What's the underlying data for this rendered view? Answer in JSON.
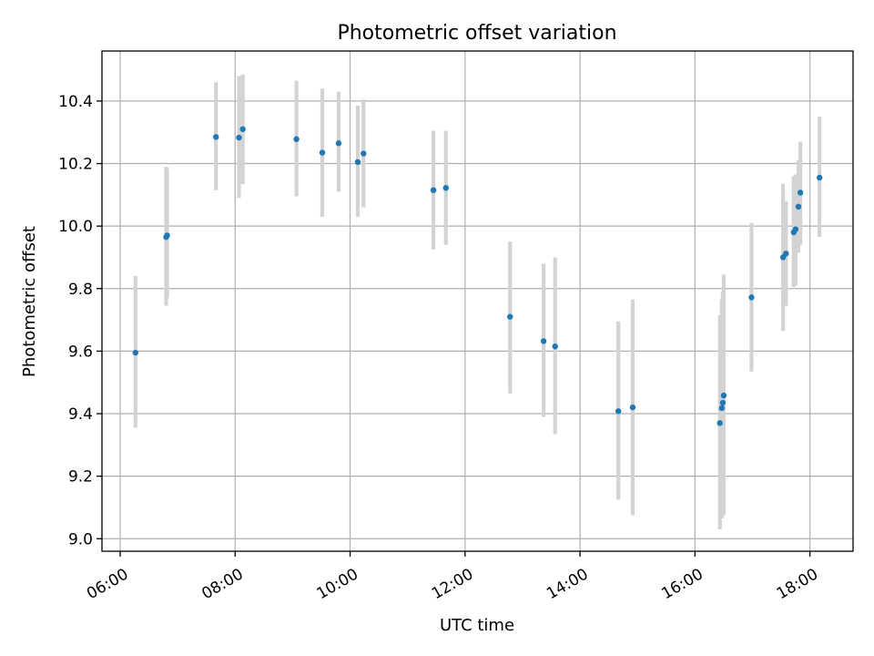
{
  "chart_data": {
    "type": "scatter",
    "title": "Photometric offset variation",
    "xlabel": "UTC time",
    "ylabel": "Photometric offset",
    "xlim": [
      "05:41",
      "18:45"
    ],
    "ylim": [
      8.96,
      10.56
    ],
    "xticks": [
      "06:00",
      "08:00",
      "10:00",
      "12:00",
      "14:00",
      "16:00",
      "18:00"
    ],
    "yticks": [
      "9.0",
      "9.2",
      "9.4",
      "9.6",
      "9.8",
      "10.0",
      "10.2",
      "10.4"
    ],
    "grid": true,
    "colors": {
      "point": "#1f77b4",
      "errorbar": "#d3d3d3",
      "grid": "#b0b0b0"
    },
    "points": [
      {
        "x": "06:16",
        "y": 9.595,
        "yerr": [
          9.355,
          9.84
        ]
      },
      {
        "x": "06:48",
        "y": 9.965,
        "yerr": [
          9.745,
          10.19
        ]
      },
      {
        "x": "06:49",
        "y": 9.97,
        "yerr": [
          9.77,
          10.185
        ]
      },
      {
        "x": "07:40",
        "y": 10.285,
        "yerr": [
          10.115,
          10.46
        ]
      },
      {
        "x": "08:04",
        "y": 10.283,
        "yerr": [
          10.09,
          10.48
        ]
      },
      {
        "x": "08:08",
        "y": 10.31,
        "yerr": [
          10.135,
          10.485
        ]
      },
      {
        "x": "09:04",
        "y": 10.278,
        "yerr": [
          10.095,
          10.465
        ]
      },
      {
        "x": "09:31",
        "y": 10.235,
        "yerr": [
          10.03,
          10.44
        ]
      },
      {
        "x": "09:48",
        "y": 10.265,
        "yerr": [
          10.11,
          10.43
        ]
      },
      {
        "x": "10:08",
        "y": 10.205,
        "yerr": [
          10.03,
          10.385
        ]
      },
      {
        "x": "10:14",
        "y": 10.232,
        "yerr": [
          10.06,
          10.405
        ]
      },
      {
        "x": "11:27",
        "y": 10.115,
        "yerr": [
          9.925,
          10.305
        ]
      },
      {
        "x": "11:40",
        "y": 10.122,
        "yerr": [
          9.94,
          10.305
        ]
      },
      {
        "x": "12:47",
        "y": 9.71,
        "yerr": [
          9.465,
          9.95
        ]
      },
      {
        "x": "13:22",
        "y": 9.632,
        "yerr": [
          9.39,
          9.88
        ]
      },
      {
        "x": "13:34",
        "y": 9.615,
        "yerr": [
          9.335,
          9.9
        ]
      },
      {
        "x": "14:40",
        "y": 9.408,
        "yerr": [
          9.125,
          9.695
        ]
      },
      {
        "x": "14:55",
        "y": 9.42,
        "yerr": [
          9.075,
          9.765
        ]
      },
      {
        "x": "16:26",
        "y": 9.37,
        "yerr": [
          9.03,
          9.715
        ]
      },
      {
        "x": "16:28",
        "y": 9.418,
        "yerr": [
          9.065,
          9.765
        ]
      },
      {
        "x": "16:29",
        "y": 9.435,
        "yerr": [
          9.095,
          9.79
        ]
      },
      {
        "x": "16:30",
        "y": 9.458,
        "yerr": [
          9.075,
          9.845
        ]
      },
      {
        "x": "16:59",
        "y": 9.772,
        "yerr": [
          9.535,
          10.01
        ]
      },
      {
        "x": "17:32",
        "y": 9.9,
        "yerr": [
          9.665,
          10.135
        ]
      },
      {
        "x": "17:35",
        "y": 9.912,
        "yerr": [
          9.745,
          10.08
        ]
      },
      {
        "x": "17:43",
        "y": 9.98,
        "yerr": [
          9.805,
          10.16
        ]
      },
      {
        "x": "17:45",
        "y": 9.99,
        "yerr": [
          9.81,
          10.165
        ]
      },
      {
        "x": "17:48",
        "y": 10.062,
        "yerr": [
          9.915,
          10.21
        ]
      },
      {
        "x": "17:50",
        "y": 10.107,
        "yerr": [
          9.94,
          10.27
        ]
      },
      {
        "x": "18:10",
        "y": 10.155,
        "yerr": [
          9.965,
          10.35
        ]
      }
    ]
  }
}
